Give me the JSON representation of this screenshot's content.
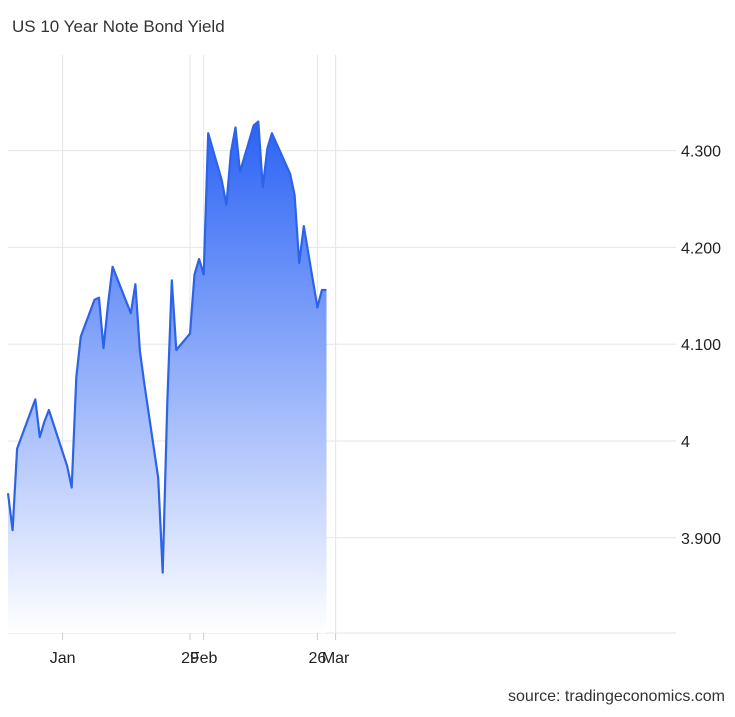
{
  "title": "US 10 Year Note Bond Yield",
  "source": "source: tradingeconomics.com",
  "colors": {
    "line": "#2d63e6",
    "fill_top": "#2a62f5",
    "fill_bottom": "#ffffff",
    "grid": "#e6e6e6"
  },
  "chart_data": {
    "type": "area",
    "title": "US 10 Year Note Bond Yield",
    "xlabel": "",
    "ylabel": "",
    "ylim": [
      3.8,
      4.4
    ],
    "y_ticks": [
      {
        "value": 3.9,
        "label": "3.900"
      },
      {
        "value": 4.0,
        "label": "4"
      },
      {
        "value": 4.1,
        "label": "4.100"
      },
      {
        "value": 4.2,
        "label": "4.200"
      },
      {
        "value": 4.3,
        "label": "4.300"
      }
    ],
    "x_ticks": [
      {
        "date": "2024-01-01",
        "label": "Jan"
      },
      {
        "date": "2024-01-29",
        "label": "29"
      },
      {
        "date": "2024-02-01",
        "label": "Feb"
      },
      {
        "date": "2024-02-26",
        "label": "26"
      },
      {
        "date": "2024-03-01",
        "label": "Mar"
      }
    ],
    "grid": true,
    "series": [
      {
        "x": [
          "2023-12-20",
          "2023-12-21",
          "2023-12-22",
          "2023-12-26",
          "2023-12-27",
          "2023-12-28",
          "2023-12-29",
          "2024-01-02",
          "2024-01-03",
          "2024-01-04",
          "2024-01-05",
          "2024-01-08",
          "2024-01-09",
          "2024-01-10",
          "2024-01-11",
          "2024-01-12",
          "2024-01-16",
          "2024-01-17",
          "2024-01-18",
          "2024-01-19",
          "2024-01-22",
          "2024-01-23",
          "2024-01-24",
          "2024-01-25",
          "2024-01-26",
          "2024-01-29",
          "2024-01-30",
          "2024-01-31",
          "2024-02-01",
          "2024-02-02",
          "2024-02-05",
          "2024-02-06",
          "2024-02-07",
          "2024-02-08",
          "2024-02-09",
          "2024-02-12",
          "2024-02-13",
          "2024-02-14",
          "2024-02-15",
          "2024-02-16",
          "2024-02-20",
          "2024-02-21",
          "2024-02-22",
          "2024-02-23",
          "2024-02-26",
          "2024-02-27",
          "2024-02-28"
        ],
        "values": [
          3.946,
          3.908,
          3.992,
          4.043,
          4.004,
          4.02,
          4.032,
          3.974,
          3.952,
          4.066,
          4.108,
          4.146,
          4.148,
          4.096,
          4.142,
          4.18,
          4.132,
          4.162,
          4.093,
          4.058,
          3.962,
          3.864,
          4.04,
          4.166,
          4.094,
          4.111,
          4.172,
          4.188,
          4.172,
          4.318,
          4.269,
          4.244,
          4.298,
          4.324,
          4.278,
          4.326,
          4.33,
          4.262,
          4.302,
          4.318,
          4.276,
          4.254,
          4.184,
          4.222,
          4.138,
          4.156,
          4.156
        ]
      }
    ]
  }
}
